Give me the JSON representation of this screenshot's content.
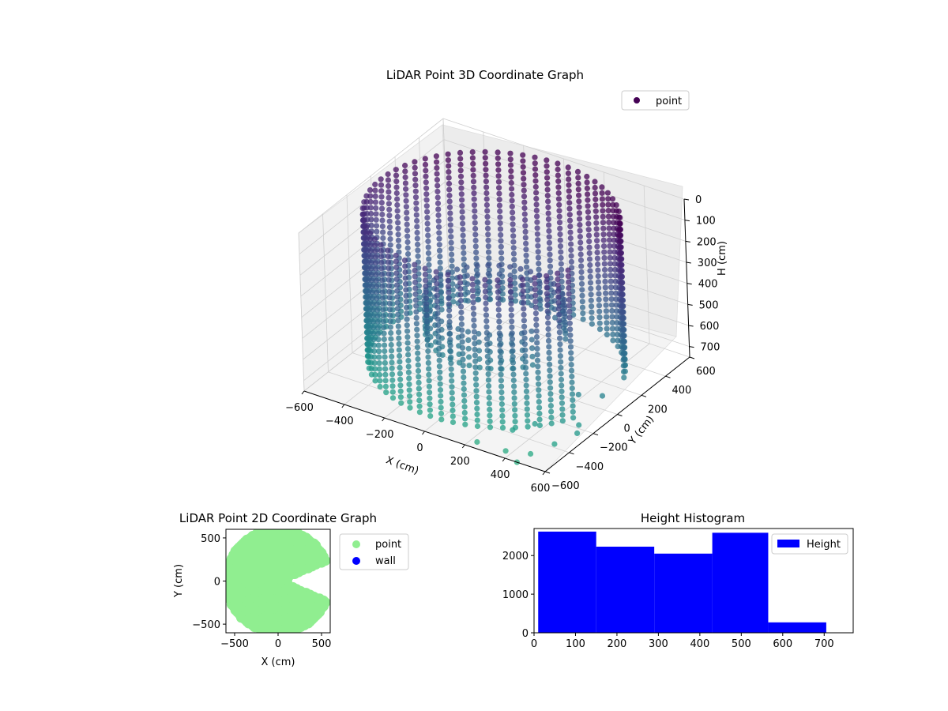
{
  "chart_data": [
    {
      "type": "scatter",
      "projection": "3d",
      "title": "LiDAR Point 3D Coordinate Graph",
      "xlabel": "X (cm)",
      "ylabel": "Y (cm)",
      "zlabel": "H (cm)",
      "xlim": [
        -600,
        600
      ],
      "ylim": [
        -600,
        600
      ],
      "zlim": [
        0,
        750
      ],
      "z_inverted": true,
      "x_ticks": [
        "−600",
        "−400",
        "−200",
        "0",
        "200",
        "400",
        "600"
      ],
      "y_ticks": [
        "−600",
        "−400",
        "−200",
        "0",
        "200",
        "400",
        "600"
      ],
      "z_ticks": [
        "0",
        "100",
        "200",
        "300",
        "400",
        "500",
        "600",
        "700"
      ],
      "legend": [
        "point"
      ],
      "legend_location": "top-right",
      "colormap": "viridis",
      "shape": "Ring of vertical point columns, radius about 550 cm, heights 0 to 700 cm, with a wedge gap on the +X side and a few scattered points near X 300 to 600, Y -600 to 0",
      "grid": true
    },
    {
      "type": "scatter",
      "title": "LiDAR Point 2D Coordinate Graph",
      "xlabel": "X (cm)",
      "ylabel": "Y (cm)",
      "xlim": [
        -600,
        600
      ],
      "ylim": [
        -600,
        600
      ],
      "x_ticks": [
        "−500",
        "0",
        "500"
      ],
      "y_ticks": [
        "−500",
        "0",
        "500"
      ],
      "series": [
        {
          "name": "point",
          "color": "#90ee90"
        },
        {
          "name": "wall",
          "color": "#0000ff"
        }
      ],
      "legend_location": "outside-right",
      "shape": "Filled disc of radius about 600 cm with a wedge opening on the +X side"
    },
    {
      "type": "bar",
      "title": "Height Histogram",
      "bins": [
        {
          "from": 10,
          "to": 150,
          "count": 2620
        },
        {
          "from": 150,
          "to": 290,
          "count": 2230
        },
        {
          "from": 290,
          "to": 430,
          "count": 2050
        },
        {
          "from": 430,
          "to": 565,
          "count": 2590
        },
        {
          "from": 565,
          "to": 705,
          "count": 270
        }
      ],
      "xlim": [
        0,
        770
      ],
      "ylim": [
        0,
        2700
      ],
      "x_ticks": [
        0,
        100,
        200,
        300,
        400,
        500,
        600,
        700
      ],
      "y_ticks": [
        0,
        1000,
        2000
      ],
      "legend": [
        "Height"
      ],
      "legend_location": "top-right",
      "bar_color": "#0000ff"
    }
  ]
}
